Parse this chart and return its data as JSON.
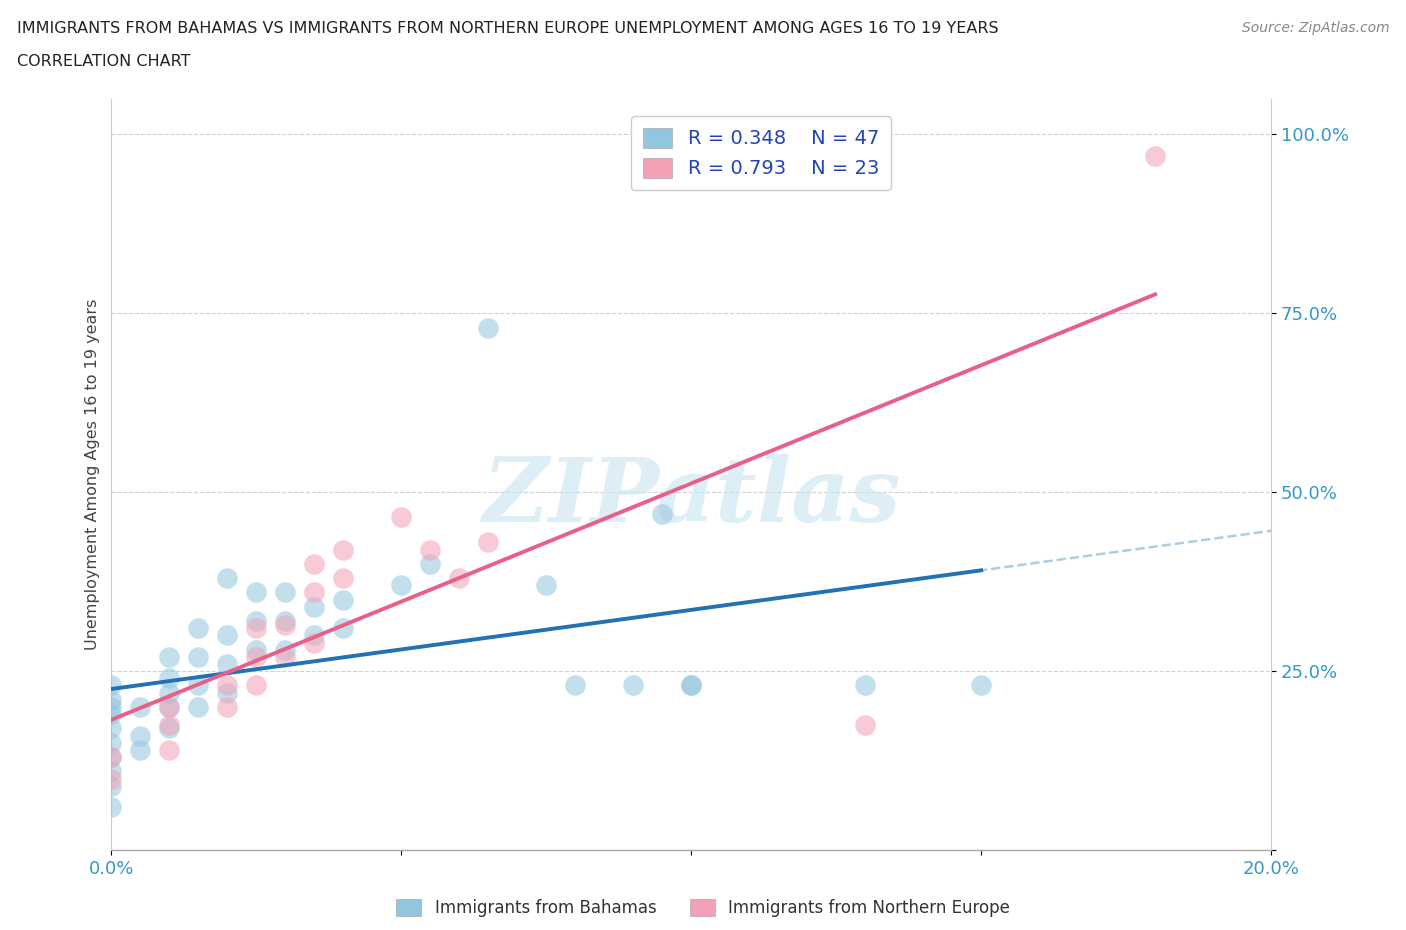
{
  "title_line1": "IMMIGRANTS FROM BAHAMAS VS IMMIGRANTS FROM NORTHERN EUROPE UNEMPLOYMENT AMONG AGES 16 TO 19 YEARS",
  "title_line2": "CORRELATION CHART",
  "source": "Source: ZipAtlas.com",
  "ylabel": "Unemployment Among Ages 16 to 19 years",
  "xlim": [
    0.0,
    0.2
  ],
  "ylim": [
    0.0,
    1.05
  ],
  "blue_R": 0.348,
  "blue_N": 47,
  "pink_R": 0.793,
  "pink_N": 23,
  "blue_color": "#92c5de",
  "pink_color": "#f4a0b5",
  "blue_line_color": "#2171b5",
  "pink_line_color": "#e8608a",
  "blue_dashed_color": "#aecde0",
  "legend_label_blue": "Immigrants from Bahamas",
  "legend_label_pink": "Immigrants from Northern Europe",
  "watermark": "ZIPatlas",
  "blue_x": [
    0.0,
    0.0,
    0.0,
    0.0,
    0.0,
    0.0,
    0.0,
    0.0,
    0.0,
    0.0,
    0.005,
    0.005,
    0.005,
    0.01,
    0.01,
    0.01,
    0.01,
    0.01,
    0.015,
    0.015,
    0.015,
    0.015,
    0.02,
    0.02,
    0.02,
    0.02,
    0.025,
    0.025,
    0.025,
    0.03,
    0.03,
    0.03,
    0.035,
    0.035,
    0.04,
    0.04,
    0.05,
    0.055,
    0.065,
    0.075,
    0.08,
    0.09,
    0.095,
    0.1,
    0.1,
    0.13,
    0.15
  ],
  "blue_y": [
    0.06,
    0.09,
    0.11,
    0.13,
    0.15,
    0.17,
    0.19,
    0.2,
    0.21,
    0.23,
    0.14,
    0.16,
    0.2,
    0.17,
    0.2,
    0.22,
    0.24,
    0.27,
    0.2,
    0.23,
    0.27,
    0.31,
    0.22,
    0.26,
    0.3,
    0.38,
    0.28,
    0.32,
    0.36,
    0.28,
    0.32,
    0.36,
    0.3,
    0.34,
    0.31,
    0.35,
    0.37,
    0.4,
    0.73,
    0.37,
    0.23,
    0.23,
    0.47,
    0.23,
    0.23,
    0.23,
    0.23
  ],
  "pink_x": [
    0.0,
    0.0,
    0.01,
    0.01,
    0.01,
    0.02,
    0.02,
    0.025,
    0.025,
    0.025,
    0.03,
    0.03,
    0.035,
    0.035,
    0.035,
    0.04,
    0.04,
    0.05,
    0.055,
    0.06,
    0.065,
    0.13,
    0.18
  ],
  "pink_y": [
    0.1,
    0.13,
    0.14,
    0.175,
    0.2,
    0.2,
    0.23,
    0.23,
    0.27,
    0.31,
    0.27,
    0.315,
    0.29,
    0.36,
    0.4,
    0.38,
    0.42,
    0.465,
    0.42,
    0.38,
    0.43,
    0.175,
    0.97
  ]
}
